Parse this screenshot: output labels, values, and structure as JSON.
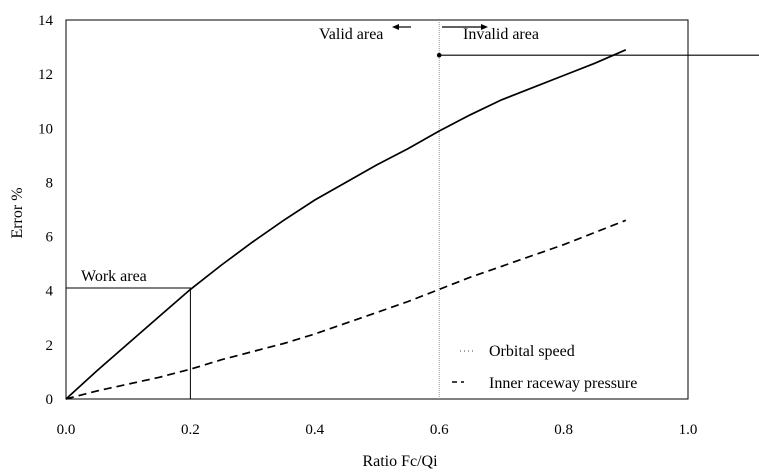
{
  "chart_data": {
    "type": "line",
    "xlabel": "Ratio Fc/Qi",
    "ylabel": "Error %",
    "xlim": [
      0,
      1.0
    ],
    "ylim": [
      0,
      14
    ],
    "x_ticks": [
      "0.0",
      "0.2",
      "0.4",
      "0.6",
      "0.8",
      "1.0"
    ],
    "y_ticks": [
      "0",
      "2",
      "4",
      "6",
      "8",
      "10",
      "12",
      "14"
    ],
    "grid": false,
    "legend_position": "bottom-right",
    "series": [
      {
        "name": "Orbital speed",
        "style": "solid",
        "x": [
          0,
          0.05,
          0.1,
          0.15,
          0.2,
          0.25,
          0.3,
          0.35,
          0.4,
          0.45,
          0.5,
          0.55,
          0.6,
          0.65,
          0.7,
          0.75,
          0.8,
          0.85,
          0.9
        ],
        "y": [
          0,
          1.05,
          2.05,
          3.05,
          4.05,
          4.95,
          5.8,
          6.6,
          7.35,
          8.0,
          8.65,
          9.25,
          9.9,
          10.5,
          11.05,
          11.5,
          11.95,
          12.4,
          12.9
        ]
      },
      {
        "name": "Inner raceway pressure",
        "style": "dashed",
        "x": [
          0,
          0.05,
          0.1,
          0.15,
          0.2,
          0.25,
          0.3,
          0.35,
          0.4,
          0.45,
          0.5,
          0.55,
          0.6,
          0.65,
          0.7,
          0.75,
          0.8,
          0.85,
          0.9
        ],
        "y": [
          0,
          0.3,
          0.55,
          0.8,
          1.1,
          1.45,
          1.75,
          2.05,
          2.4,
          2.8,
          3.2,
          3.6,
          4.05,
          4.5,
          4.9,
          5.3,
          5.7,
          6.15,
          6.6
        ]
      }
    ],
    "annotations": {
      "valid": "Valid area",
      "invalid": "Invalid area",
      "work": "Work area",
      "boundary_x": 0.6,
      "work_box": {
        "x": 0.2,
        "y": 4.1
      },
      "arrow_y": 12.7
    }
  }
}
